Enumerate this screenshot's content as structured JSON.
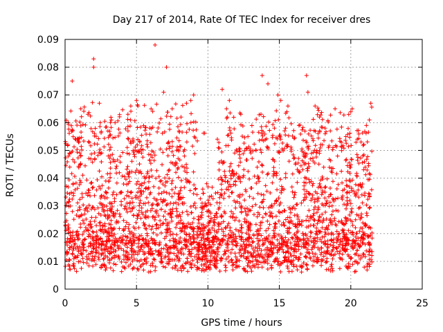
{
  "chart_data": {
    "type": "scatter",
    "title": "Day 217 of 2014, Rate Of TEC Index for receiver dres",
    "xlabel": "GPS time / hours",
    "ylabel": "ROTI / TECUs",
    "xlim": [
      0,
      25
    ],
    "ylim": [
      0,
      0.09
    ],
    "x_ticks": [
      0,
      5,
      10,
      15,
      20,
      25
    ],
    "y_ticks": [
      0,
      0.01,
      0.02,
      0.03,
      0.04,
      0.05,
      0.06,
      0.07,
      0.08,
      0.09
    ],
    "x_tick_labels": [
      "0",
      "5",
      "10",
      "15",
      "20",
      "25"
    ],
    "y_tick_labels": [
      "0",
      "0.01",
      "0.02",
      "0.03",
      "0.04",
      "0.05",
      "0.06",
      "0.07",
      "0.08",
      "0.09"
    ],
    "grid": true,
    "marker": "+",
    "color": "#ff0000",
    "series": [
      {
        "x": [
          0.2,
          0.5,
          1.1,
          1.6,
          2.0,
          2.0,
          2.4,
          3.0,
          3.5,
          4.4,
          4.6,
          5.0,
          5.1,
          6.3,
          6.9,
          7.1,
          7.5,
          8.5,
          8.8,
          9.0,
          11.0,
          11.3,
          11.5,
          12.3,
          12.8,
          13.8,
          14.2,
          14.9,
          15.1,
          15.6,
          16.9,
          17.0,
          17.5,
          18.9,
          20.1,
          21.3,
          21.4
        ],
        "y": [
          0.052,
          0.075,
          0.065,
          0.063,
          0.083,
          0.08,
          0.067,
          0.057,
          0.06,
          0.063,
          0.066,
          0.068,
          0.066,
          0.088,
          0.071,
          0.08,
          0.065,
          0.067,
          0.068,
          0.07,
          0.072,
          0.065,
          0.068,
          0.063,
          0.055,
          0.077,
          0.074,
          0.07,
          0.068,
          0.066,
          0.077,
          0.071,
          0.066,
          0.065,
          0.065,
          0.061,
          0.067
        ]
      }
    ]
  }
}
